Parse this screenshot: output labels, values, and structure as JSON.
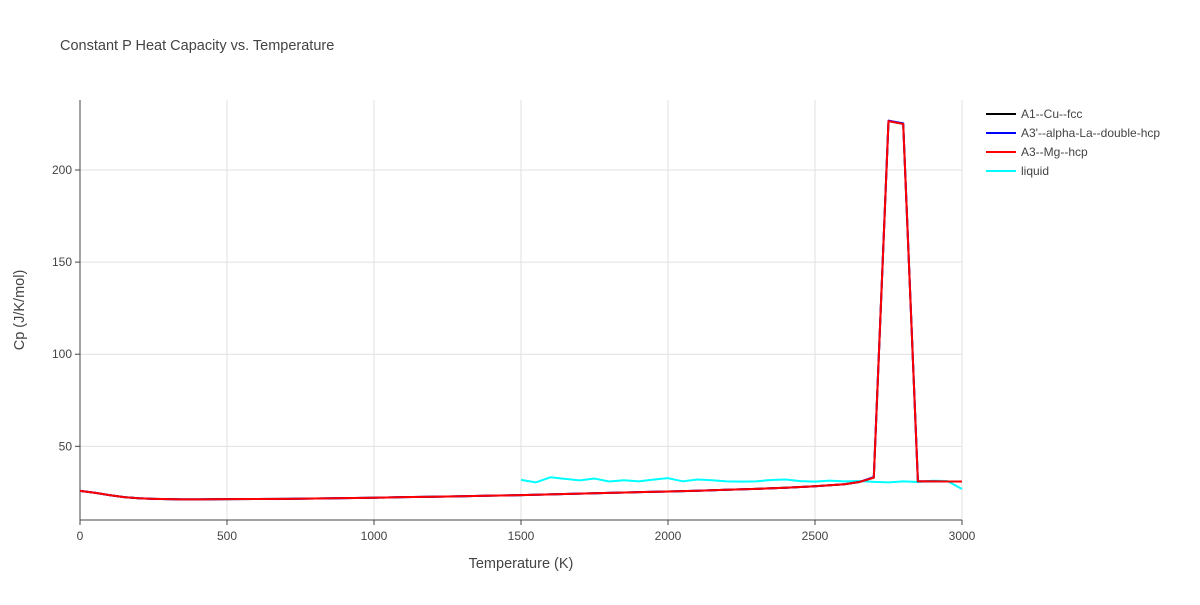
{
  "chart_data": {
    "type": "line",
    "title": "Constant P Heat Capacity vs. Temperature",
    "xlabel": "Temperature (K)",
    "ylabel": "Cp (J/K/mol)",
    "xlim": [
      0,
      3000
    ],
    "ylim": [
      10,
      238
    ],
    "x_ticks": [
      0,
      500,
      1000,
      1500,
      2000,
      2500,
      3000
    ],
    "x_tick_labels": [
      "0",
      "500",
      "1000",
      "1500",
      "2000",
      "2500",
      "3000"
    ],
    "y_ticks": [
      50,
      100,
      150,
      200
    ],
    "y_tick_labels": [
      "50",
      "100",
      "150",
      "200"
    ],
    "grid": true,
    "legend_position": "top-right",
    "series": [
      {
        "name": "A1--Cu--fcc",
        "color": "#000000",
        "x": [
          0,
          50,
          100,
          150,
          200,
          250,
          300,
          350,
          400,
          500,
          600,
          700,
          800,
          900,
          1000,
          1100,
          1200,
          1300,
          1400,
          1500,
          1600,
          1700,
          1800,
          1900,
          2000,
          2100,
          2200,
          2300,
          2400,
          2500,
          2600,
          2650,
          2700,
          2750,
          2800,
          2850,
          2900,
          2950,
          3000
        ],
        "y": [
          25.8,
          24.8,
          23.5,
          22.4,
          21.8,
          21.5,
          21.3,
          21.2,
          21.2,
          21.3,
          21.4,
          21.5,
          21.7,
          21.9,
          22.1,
          22.4,
          22.6,
          22.9,
          23.2,
          23.5,
          23.9,
          24.3,
          24.7,
          25.1,
          25.5,
          25.9,
          26.4,
          26.9,
          27.5,
          28.3,
          29.4,
          30.6,
          33.0,
          226.5,
          225.0,
          31.0,
          31.0,
          30.9,
          30.9
        ]
      },
      {
        "name": "A3'--alpha-La--double-hcp",
        "color": "#0000ff",
        "x": [
          0,
          50,
          100,
          150,
          200,
          250,
          300,
          350,
          400,
          500,
          600,
          700,
          800,
          900,
          1000,
          1100,
          1200,
          1300,
          1400,
          1500,
          1600,
          1700,
          1800,
          1900,
          2000,
          2100,
          2200,
          2300,
          2400,
          2500,
          2600,
          2650,
          2700,
          2750,
          2800,
          2850,
          2900,
          2950,
          3000
        ],
        "y": [
          25.8,
          24.8,
          23.5,
          22.4,
          21.8,
          21.5,
          21.3,
          21.2,
          21.2,
          21.3,
          21.4,
          21.5,
          21.7,
          21.9,
          22.1,
          22.4,
          22.6,
          22.9,
          23.2,
          23.5,
          23.9,
          24.3,
          24.7,
          25.1,
          25.5,
          25.9,
          26.4,
          26.9,
          27.5,
          28.3,
          29.4,
          30.6,
          33.3,
          226.8,
          225.3,
          31.0,
          31.0,
          30.9,
          30.9
        ]
      },
      {
        "name": "A3--Mg--hcp",
        "color": "#ff0000",
        "x": [
          0,
          50,
          100,
          150,
          200,
          250,
          300,
          350,
          400,
          500,
          600,
          700,
          800,
          900,
          1000,
          1100,
          1200,
          1300,
          1400,
          1500,
          1600,
          1700,
          1800,
          1900,
          2000,
          2100,
          2200,
          2300,
          2400,
          2500,
          2600,
          2650,
          2700,
          2750,
          2800,
          2850,
          2900,
          2950,
          3000
        ],
        "y": [
          25.8,
          24.8,
          23.5,
          22.4,
          21.8,
          21.5,
          21.3,
          21.2,
          21.2,
          21.3,
          21.4,
          21.5,
          21.7,
          21.9,
          22.1,
          22.4,
          22.6,
          22.9,
          23.2,
          23.5,
          23.9,
          24.3,
          24.7,
          25.1,
          25.5,
          25.9,
          26.4,
          26.9,
          27.5,
          28.3,
          29.4,
          30.6,
          33.0,
          226.5,
          225.0,
          31.0,
          31.0,
          30.9,
          30.9
        ]
      },
      {
        "name": "liquid",
        "color": "#00ffff",
        "x": [
          1500,
          1550,
          1600,
          1650,
          1700,
          1750,
          1800,
          1850,
          1900,
          1950,
          2000,
          2050,
          2100,
          2150,
          2200,
          2250,
          2300,
          2350,
          2400,
          2450,
          2500,
          2550,
          2600,
          2650,
          2700,
          2750,
          2800,
          2850,
          2900,
          2950,
          3000
        ],
        "y": [
          31.8,
          30.4,
          33.2,
          32.3,
          31.5,
          32.5,
          30.9,
          31.6,
          31.0,
          31.9,
          32.7,
          31.0,
          32.0,
          31.6,
          31.0,
          30.8,
          31.0,
          31.7,
          32.0,
          31.1,
          30.8,
          31.4,
          31.0,
          31.2,
          30.7,
          30.4,
          31.0,
          30.6,
          31.3,
          31.2,
          26.8
        ]
      }
    ]
  }
}
